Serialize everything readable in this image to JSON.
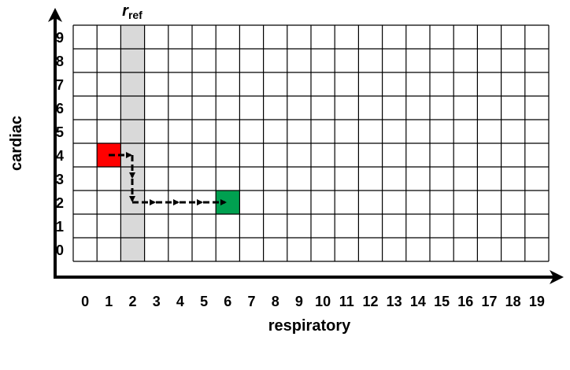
{
  "y_axis": {
    "label": "cardiac",
    "ticks": [
      "0",
      "1",
      "2",
      "3",
      "4",
      "5",
      "6",
      "7",
      "8",
      "9"
    ]
  },
  "x_axis": {
    "label": "respiratory",
    "ticks": [
      "0",
      "1",
      "2",
      "3",
      "4",
      "5",
      "6",
      "7",
      "8",
      "9",
      "10",
      "11",
      "12",
      "13",
      "14",
      "15",
      "16",
      "17",
      "18",
      "19"
    ]
  },
  "reference": {
    "symbol": "r",
    "subscript": "ref"
  }
}
